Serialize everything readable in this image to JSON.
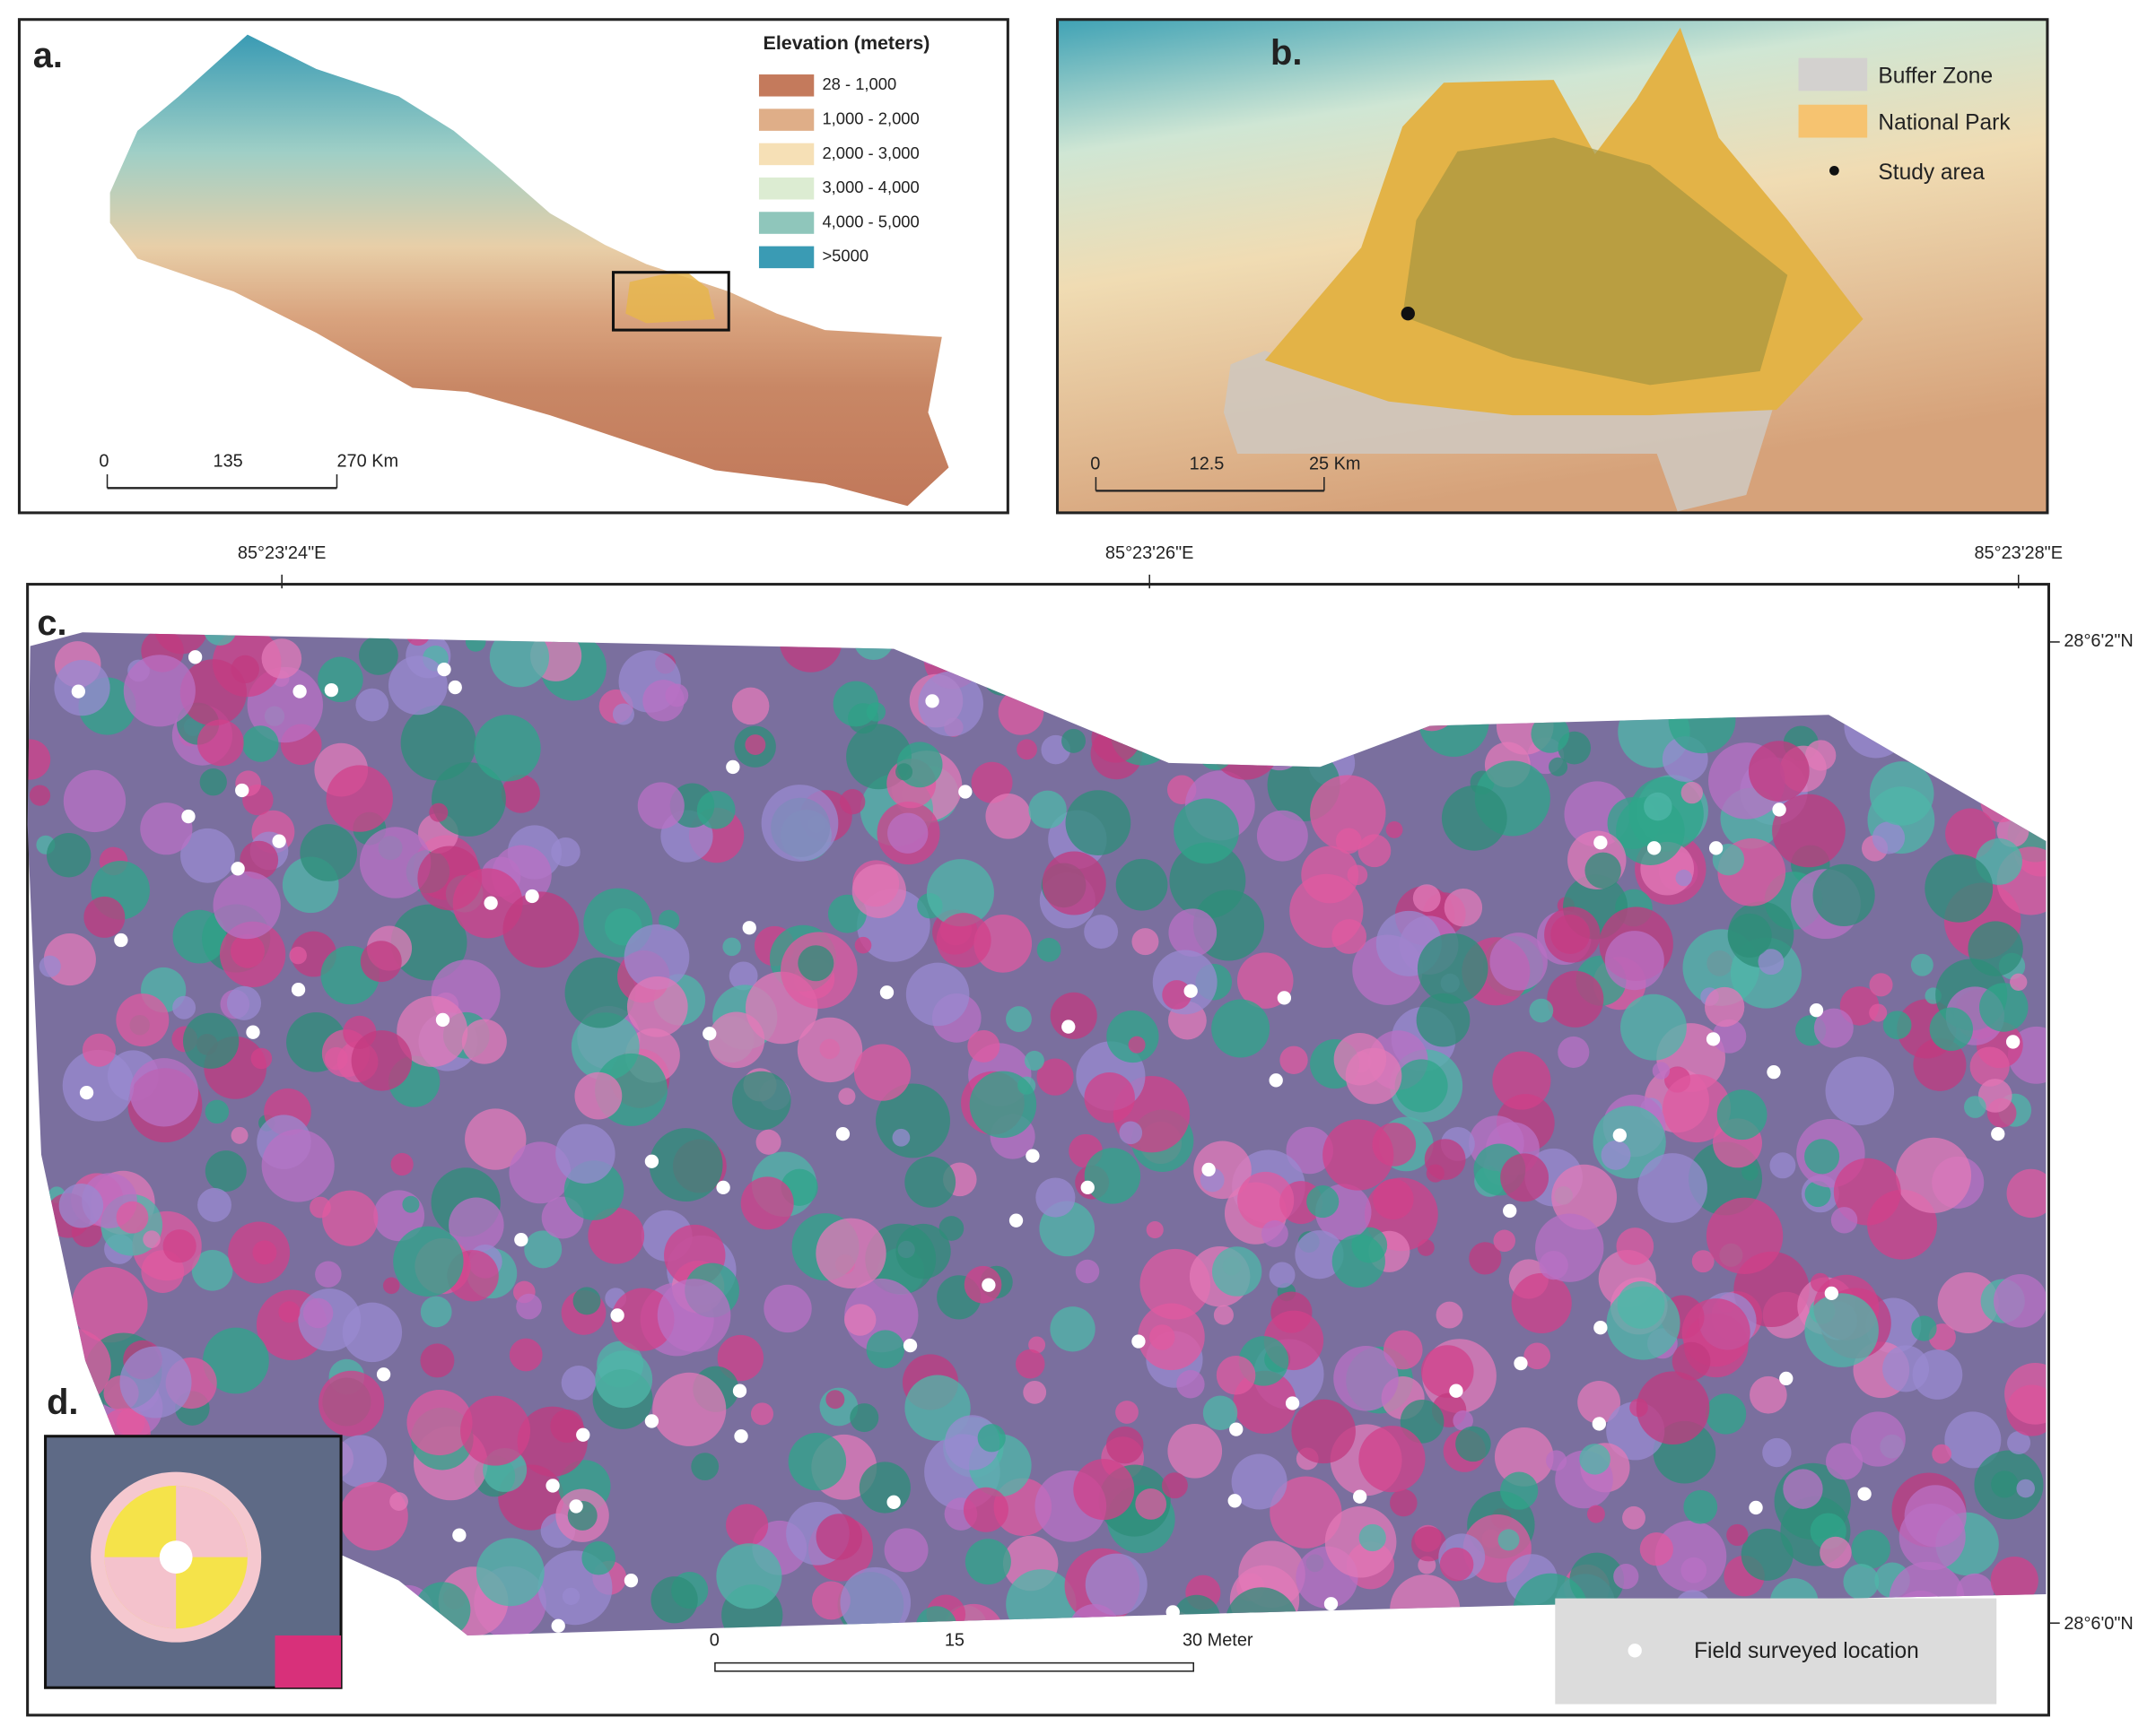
{
  "panels": {
    "a": {
      "label": "a.",
      "legend": {
        "title": "Elevation (meters)",
        "items": [
          "28 - 1,000",
          "1,000 - 2,000",
          "2,000 - 3,000",
          "3,000 - 4,000",
          "4,000 - 5,000",
          ">5000"
        ]
      },
      "scale_bar": [
        "0",
        "135",
        "270 Km"
      ]
    },
    "b": {
      "label": "b.",
      "legend": [
        "Buffer Zone",
        "National Park",
        "Study area"
      ],
      "scale_bar": [
        "0",
        "12.5",
        "25 Km"
      ]
    },
    "c": {
      "label": "c.",
      "x_coords": [
        "85°23'24\"E",
        "85°23'26\"E",
        "85°23'28\"E"
      ],
      "y_coords": [
        "28°6'2\"N",
        "28°6'0\"N"
      ],
      "scale_bar": [
        "0",
        "15",
        "30 Meter"
      ],
      "legend": "Field surveyed location"
    },
    "d": {
      "label": "d."
    }
  }
}
